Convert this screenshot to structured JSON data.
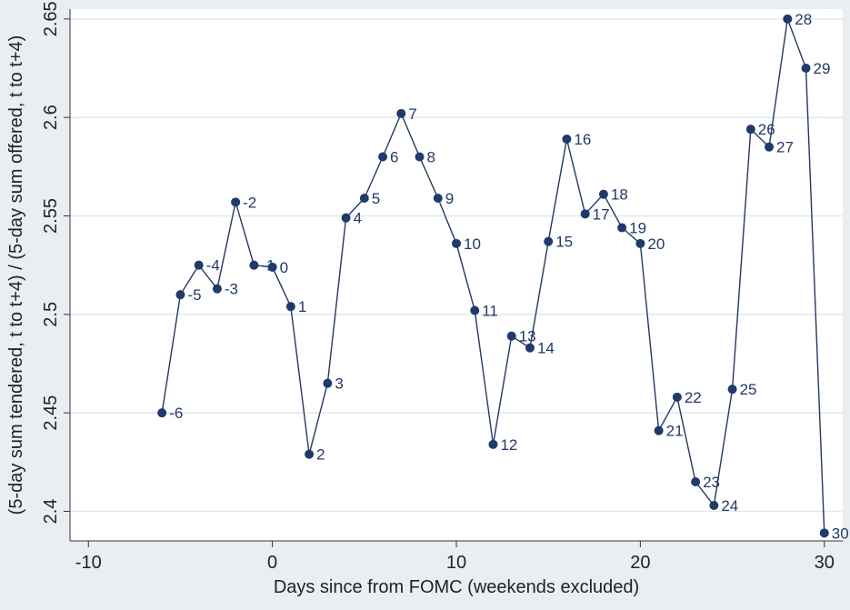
{
  "chart_data": {
    "type": "line",
    "title": "",
    "xlabel": "Days since from FOMC (weekends excluded)",
    "ylabel": "(5-day sum tendered, t to t+4) / (5-day sum offered, t to t+4)",
    "xlim": [
      -11,
      31
    ],
    "ylim": [
      2.385,
      2.655
    ],
    "xticks": [
      -10,
      0,
      10,
      20,
      30
    ],
    "yticks": [
      2.4,
      2.45,
      2.5,
      2.55,
      2.6,
      2.65
    ],
    "xtick_labels": [
      "-10",
      "0",
      "10",
      "20",
      "30"
    ],
    "ytick_labels": [
      "2.4",
      "2.45",
      "2.5",
      "2.55",
      "2.6",
      "2.65"
    ],
    "grid": "horizontal",
    "legend": "none",
    "colors": {
      "background": "#e9eef3",
      "plot_area": "#ffffff",
      "line": "#1f3a6e",
      "marker": "#1f3a6e",
      "gridline": "#e3e8ee"
    },
    "series": [
      {
        "x": [
          -6,
          -5,
          -4,
          -3,
          -2,
          -1,
          0,
          1,
          2,
          3,
          4,
          5,
          6,
          7,
          8,
          9,
          10,
          11,
          12,
          13,
          14,
          15,
          16,
          17,
          18,
          19,
          20,
          21,
          22,
          23,
          24,
          25,
          26,
          27,
          28,
          29,
          30
        ],
        "y": [
          2.45,
          2.51,
          2.525,
          2.513,
          2.557,
          2.525,
          2.524,
          2.504,
          2.429,
          2.465,
          2.549,
          2.559,
          2.58,
          2.602,
          2.58,
          2.559,
          2.536,
          2.502,
          2.434,
          2.489,
          2.483,
          2.537,
          2.589,
          2.551,
          2.561,
          2.544,
          2.536,
          2.441,
          2.458,
          2.415,
          2.403,
          2.462,
          2.594,
          2.585,
          2.65,
          2.625,
          2.389
        ],
        "point_labels": [
          "-6",
          "-5",
          "-4",
          "-3",
          "-2",
          "-1",
          "0",
          "1",
          "2",
          "3",
          "4",
          "5",
          "6",
          "7",
          "8",
          "9",
          "10",
          "11",
          "12",
          "13",
          "14",
          "15",
          "16",
          "17",
          "18",
          "19",
          "20",
          "21",
          "22",
          "23",
          "24",
          "25",
          "26",
          "27",
          "28",
          "29",
          "30"
        ]
      }
    ]
  }
}
